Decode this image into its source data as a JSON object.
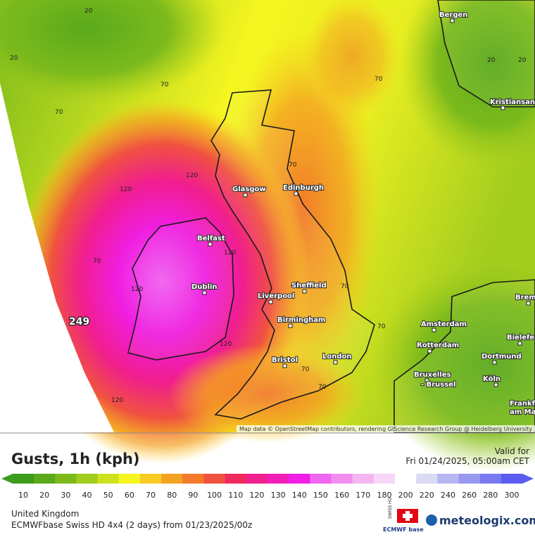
{
  "map": {
    "title": "Gusts, 1h (kph)",
    "valid_label": "Valid for",
    "valid_time": "Fri 01/24/2025, 05:00am CET",
    "region": "United Kingdom",
    "model": "ECMWFbase Swiss HD 4x4 (2 days) from 01/23/2025/00z",
    "attribution": "Map data © OpenStreetMap contributors, rendering GIScience Research Group @ Heidelberg University",
    "brand": "meteologix.com",
    "badge_top": "SWISS HD",
    "badge_bottom": "ECMWF base",
    "cities": [
      "Bergen",
      "Kristiansand",
      "Glasgow",
      "Edinburgh",
      "Belfast",
      "Dublin",
      "Sheffield",
      "Liverpool",
      "Birmingham",
      "Bristol",
      "London",
      "Amsterdam",
      "Rotterdam",
      "Bruxelles",
      "- Brussel",
      "Dortmund",
      "Köln",
      "Bielefeld",
      "Brem",
      "Frankf",
      "am Ma"
    ],
    "contour_labels": [
      "20",
      "20",
      "70",
      "70",
      "70",
      "70",
      "120",
      "120",
      "120",
      "120",
      "120",
      "120",
      "70",
      "70",
      "70",
      "70",
      "70",
      "249",
      "20",
      "20"
    ],
    "legend": [
      {
        "value": 10,
        "color": "#3c9c1c"
      },
      {
        "value": 20,
        "color": "#5aaa1c"
      },
      {
        "value": 30,
        "color": "#7cba1c"
      },
      {
        "value": 40,
        "color": "#a2cc1e"
      },
      {
        "value": 50,
        "color": "#cce21e"
      },
      {
        "value": 60,
        "color": "#f5f520"
      },
      {
        "value": 70,
        "color": "#f7cc22"
      },
      {
        "value": 80,
        "color": "#f5a222"
      },
      {
        "value": 90,
        "color": "#f27a2a"
      },
      {
        "value": 100,
        "color": "#f05240"
      },
      {
        "value": 110,
        "color": "#f02a5c"
      },
      {
        "value": 120,
        "color": "#f01e8e"
      },
      {
        "value": 130,
        "color": "#f01eb6"
      },
      {
        "value": 140,
        "color": "#f01ee6"
      },
      {
        "value": 150,
        "color": "#f066f0"
      },
      {
        "value": 160,
        "color": "#f28ef0"
      },
      {
        "value": 170,
        "color": "#f4b6f2"
      },
      {
        "value": 180,
        "color": "#f7d6f7"
      },
      {
        "value": 200,
        "color": "#ffffff"
      },
      {
        "value": 220,
        "color": "#dadaf5"
      },
      {
        "value": 240,
        "color": "#b6b6f2"
      },
      {
        "value": 260,
        "color": "#9898f0"
      },
      {
        "value": 280,
        "color": "#7a7af0"
      },
      {
        "value": 300,
        "color": "#5c5cf0"
      }
    ]
  }
}
